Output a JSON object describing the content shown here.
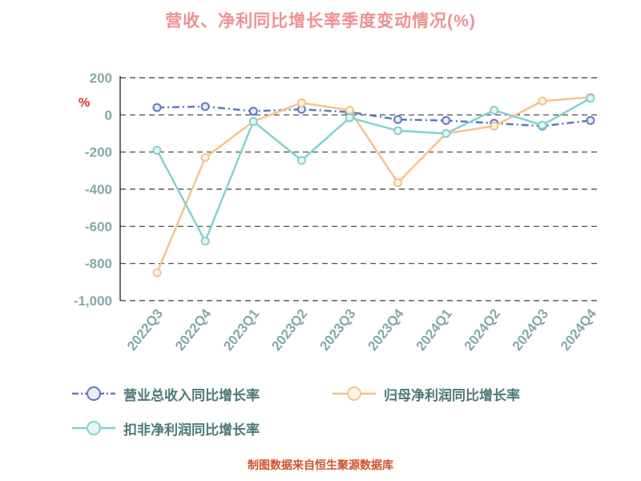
{
  "title": "营收、净利同比增长率季度变动情况(%)",
  "ylabel": "%",
  "footer": "制图数据来自恒生聚源数据库",
  "colors": {
    "title": "#f09090",
    "axis_text": "#85a8a8",
    "ylabel": "#e03030",
    "legend_text": "#4e7878",
    "footer": "#d2512e",
    "grid": "#3a3a3a"
  },
  "chart_data": {
    "type": "line",
    "title": "营收、净利同比增长率季度变动情况(%)",
    "xlabel": "",
    "ylabel": "%",
    "ylim": [
      -1000,
      200
    ],
    "grid": true,
    "legend_position": "bottom",
    "categories": [
      "2022Q3",
      "2022Q4",
      "2023Q1",
      "2023Q2",
      "2023Q3",
      "2023Q4",
      "2024Q1",
      "2024Q2",
      "2024Q3",
      "2024Q4"
    ],
    "yticks": [
      {
        "value": 200,
        "label": "200"
      },
      {
        "value": 0,
        "label": "0"
      },
      {
        "value": -200,
        "label": "-200"
      },
      {
        "value": -400,
        "label": "-400"
      },
      {
        "value": -600,
        "label": "-600"
      },
      {
        "value": -800,
        "label": "-800"
      },
      {
        "value": -1000,
        "label": "-1,000"
      }
    ],
    "series": [
      {
        "name": "营业总收入同比增长率",
        "color": "#6277bd",
        "marker_fill": "#e9edf9",
        "dash": true,
        "values": [
          40,
          45,
          20,
          30,
          15,
          -25,
          -30,
          -45,
          -60,
          -30
        ]
      },
      {
        "name": "归母净利润同比增长率",
        "color": "#f5c388",
        "marker_fill": "#fdf3e3",
        "dash": false,
        "values": [
          -850,
          -230,
          -35,
          65,
          25,
          -365,
          -100,
          -60,
          75,
          95
        ]
      },
      {
        "name": "扣非净利润同比增长率",
        "color": "#82d2cf",
        "marker_fill": "#e4f7f6",
        "dash": false,
        "values": [
          -190,
          -680,
          -35,
          -245,
          -15,
          -85,
          -100,
          25,
          -55,
          90
        ]
      }
    ]
  }
}
